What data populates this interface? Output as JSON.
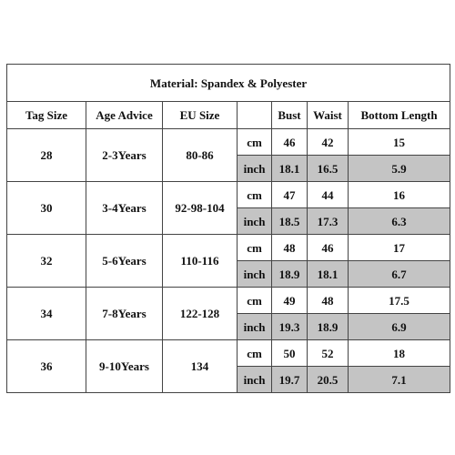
{
  "title": "Material: Spandex & Polyester",
  "headers": [
    "Tag Size",
    "Age Advice",
    "EU Size",
    "",
    "Bust",
    "Waist",
    "Bottom Length"
  ],
  "rows": [
    {
      "tag": "28",
      "age": "2-3Years",
      "eu": "80-86",
      "cm": {
        "unit": "cm",
        "bust": "46",
        "waist": "42",
        "bottom": "15"
      },
      "inch": {
        "unit": "inch",
        "bust": "18.1",
        "waist": "16.5",
        "bottom": "5.9"
      }
    },
    {
      "tag": "30",
      "age": "3-4Years",
      "eu": "92-98-104",
      "cm": {
        "unit": "cm",
        "bust": "47",
        "waist": "44",
        "bottom": "16"
      },
      "inch": {
        "unit": "inch",
        "bust": "18.5",
        "waist": "17.3",
        "bottom": "6.3"
      }
    },
    {
      "tag": "32",
      "age": "5-6Years",
      "eu": "110-116",
      "cm": {
        "unit": "cm",
        "bust": "48",
        "waist": "46",
        "bottom": "17"
      },
      "inch": {
        "unit": "inch",
        "bust": "18.9",
        "waist": "18.1",
        "bottom": "6.7"
      }
    },
    {
      "tag": "34",
      "age": "7-8Years",
      "eu": "122-128",
      "cm": {
        "unit": "cm",
        "bust": "49",
        "waist": "48",
        "bottom": "17.5"
      },
      "inch": {
        "unit": "inch",
        "bust": "19.3",
        "waist": "18.9",
        "bottom": "6.9"
      }
    },
    {
      "tag": "36",
      "age": "9-10Years",
      "eu": "134",
      "cm": {
        "unit": "cm",
        "bust": "50",
        "waist": "52",
        "bottom": "18"
      },
      "inch": {
        "unit": "inch",
        "bust": "19.7",
        "waist": "20.5",
        "bottom": "7.1"
      }
    }
  ],
  "colors": {
    "inch_bg": "#c4c4c4",
    "border": "#444444"
  }
}
